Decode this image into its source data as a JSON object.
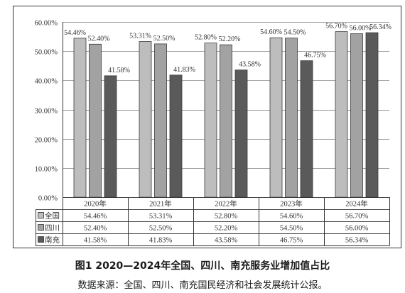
{
  "chart_data": {
    "type": "bar",
    "title": "图1 2020—2024年全国、四川、南充服务业增加值占比",
    "source": "数据来源：全国、四川、南充国民经济和社会发展统计公报。",
    "categories": [
      "2020年",
      "2021年",
      "2022年",
      "2023年",
      "2024年"
    ],
    "series": [
      {
        "name": "全国",
        "color": "#bdbdbd",
        "values": [
          54.46,
          53.31,
          52.8,
          54.6,
          56.7
        ],
        "labels": [
          "54.46%",
          "53.31%",
          "52.80%",
          "54.60%",
          "56.70%"
        ]
      },
      {
        "name": "四川",
        "color": "#a2a2a2",
        "values": [
          52.4,
          52.5,
          52.2,
          54.5,
          56.0
        ],
        "labels": [
          "52.40%",
          "52.50%",
          "52.20%",
          "54.50%",
          "56.00%"
        ]
      },
      {
        "name": "南充",
        "color": "#5a5a5a",
        "values": [
          41.58,
          41.83,
          43.58,
          46.75,
          56.34
        ],
        "labels": [
          "41.58%",
          "41.83%",
          "43.58%",
          "46.75%",
          "56.34%"
        ]
      }
    ],
    "ylim": [
      0,
      60
    ],
    "yticks": [
      0,
      10,
      20,
      30,
      40,
      50,
      60
    ],
    "ytick_labels": [
      "0.00%",
      "10.00%",
      "20.00%",
      "30.00%",
      "40.00%",
      "50.00%",
      "60.00%"
    ],
    "grid": true,
    "legend": "bottom"
  }
}
